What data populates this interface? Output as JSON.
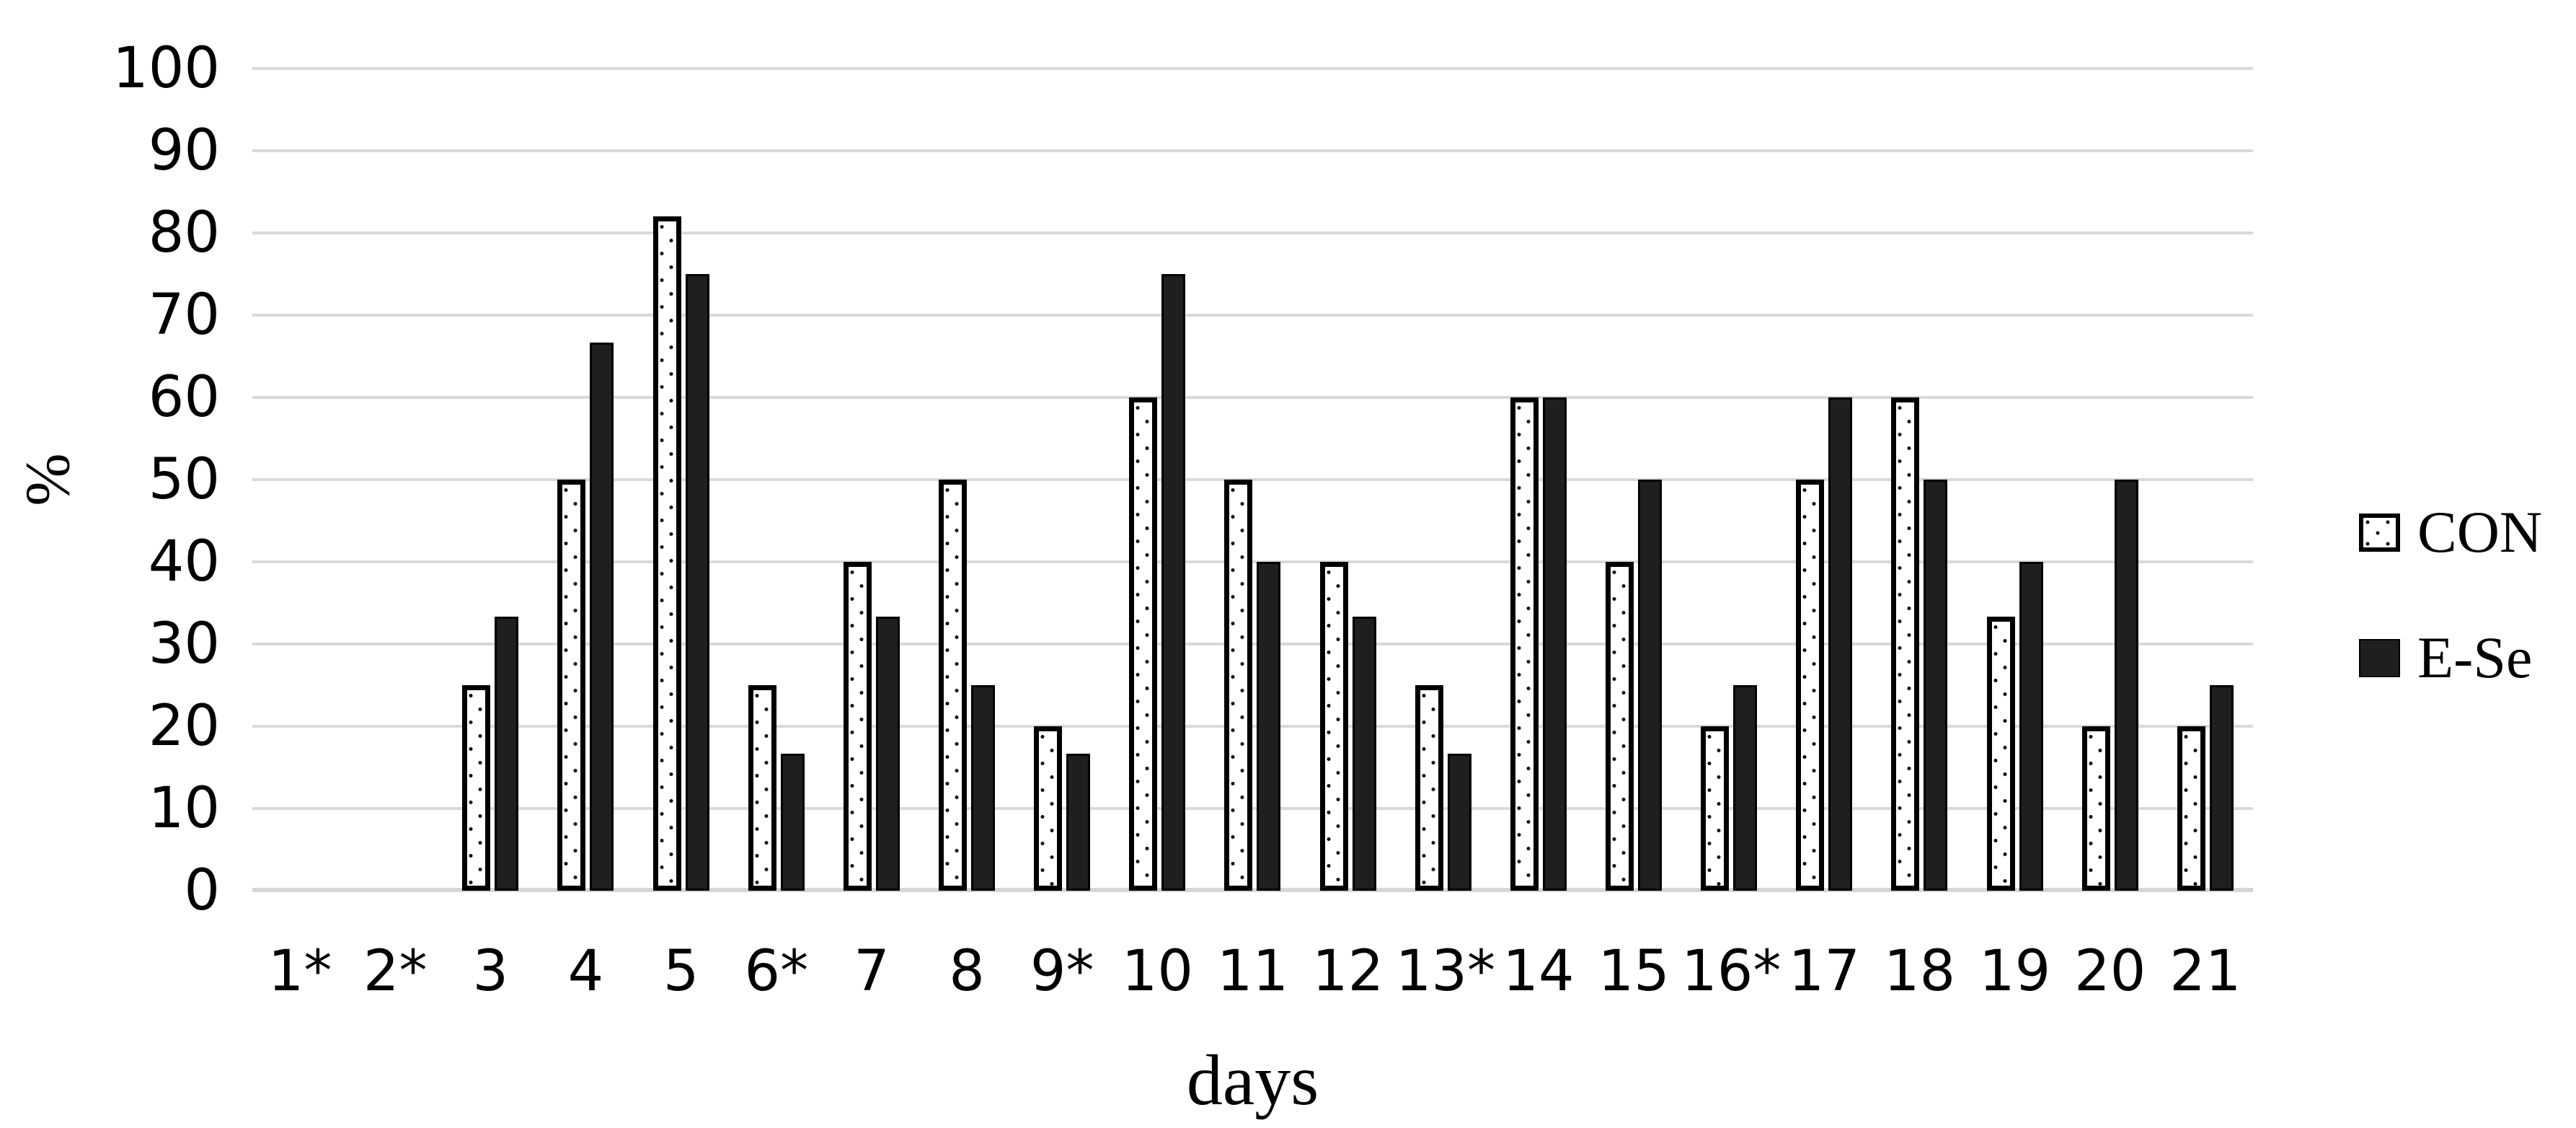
{
  "chart_data": {
    "type": "bar",
    "title": "",
    "xlabel": "days",
    "ylabel": "%",
    "ylim": [
      0,
      100
    ],
    "ytick_interval": 10,
    "yticks": [
      0,
      10,
      20,
      30,
      40,
      50,
      60,
      70,
      80,
      90,
      100
    ],
    "grid": true,
    "legend_position": "right",
    "categories": [
      "1*",
      "2*",
      "3",
      "4",
      "5",
      "6*",
      "7",
      "8",
      "9*",
      "10",
      "11",
      "12",
      "13*",
      "14",
      "15",
      "16*",
      "17",
      "18",
      "19",
      "20",
      "21"
    ],
    "series": [
      {
        "name": "CON",
        "swatch_style": "dotted-white",
        "values": [
          0,
          0,
          25,
          50,
          82,
          25,
          40,
          50,
          20,
          60,
          50,
          40,
          25,
          60,
          40,
          20,
          50,
          60,
          33.3,
          20,
          20
        ]
      },
      {
        "name": "E-Se",
        "swatch_style": "solid-dark",
        "values": [
          0,
          0,
          33.3,
          66.7,
          75,
          16.7,
          33.3,
          25,
          16.7,
          75,
          40,
          33.3,
          16.7,
          60,
          50,
          25,
          60,
          50,
          40,
          50,
          25
        ]
      }
    ]
  },
  "colors": {
    "ese_fill": "#1f1f1f",
    "con_fill": "#ffffff",
    "bar_border": "#000000",
    "grid_color": "#d9d9d9",
    "baseline_color": "#d6d6d6",
    "text": "#000000"
  }
}
